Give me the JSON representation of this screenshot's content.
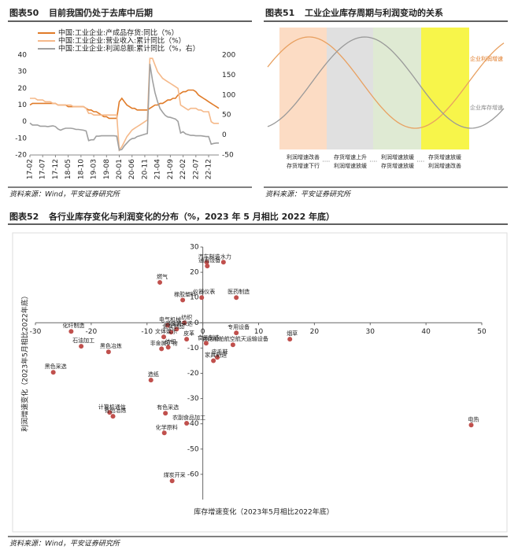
{
  "figures": [
    {
      "number": "图表50",
      "title": "目前我国仍处于去库中后期"
    },
    {
      "number": "图表51",
      "title": "工业企业库存周期与利润变动的关系"
    },
    {
      "number": "图表52",
      "title": "各行业库存变化与利润变化的分布（%，2023 年 5 月相比 2022 年底）"
    }
  ],
  "sources": [
    "资料来源：Wind，平安证券研究所",
    "资料来源：平安证券研究所",
    "资料来源：Wind，平安证券研究所"
  ],
  "diagram": {
    "curves": [
      "企业利润增速",
      "企业库存增速"
    ],
    "phases": [
      [
        "利润增速改善",
        "存货增速下行"
      ],
      [
        "存货增速上升",
        "利润增速放缓"
      ],
      [
        "利润增速放缓",
        "存货增速放缓"
      ],
      [
        "存货增速放缓",
        "利润增速改善"
      ]
    ]
  },
  "chart_data": [
    {
      "type": "line",
      "categories": [
        "17-02",
        null,
        null,
        null,
        null,
        "17-07",
        null,
        null,
        null,
        null,
        "17-12",
        null,
        null,
        null,
        null,
        "18-05",
        null,
        null,
        null,
        null,
        "18-10",
        null,
        null,
        null,
        null,
        "19-03",
        null,
        null,
        null,
        null,
        "19-08",
        null,
        null,
        null,
        null,
        "20-01",
        null,
        null,
        null,
        null,
        "20-06",
        null,
        null,
        null,
        null,
        "20-11",
        null,
        null,
        null,
        null,
        "21-04",
        null,
        null,
        null,
        null,
        "21-09",
        null,
        null,
        null,
        null,
        "22-02",
        null,
        null,
        null,
        null,
        "22-07",
        null,
        null,
        null,
        null,
        "22-12",
        null,
        null,
        null,
        null
      ],
      "ylim": [
        -20,
        40
      ],
      "yticks": [
        -20,
        -10,
        0,
        10,
        20,
        30,
        40
      ],
      "y2lim": [
        -50,
        200
      ],
      "y2ticks": [
        -50,
        0,
        50,
        100,
        150,
        200
      ],
      "series": [
        {
          "name": "中国:工业企业:产成品存货:同比（%）",
          "color": "#e07b28",
          "values": [
            10,
            11,
            11,
            11,
            11,
            11,
            11,
            11,
            11,
            11,
            11,
            10,
            10,
            10,
            10,
            9,
            9,
            9,
            9,
            9,
            9,
            9,
            8,
            7,
            7,
            6,
            6,
            5,
            4,
            3,
            3,
            2,
            2,
            2,
            2,
            12,
            14,
            12,
            10,
            9,
            8,
            8,
            7,
            7,
            7,
            7,
            7,
            8,
            9,
            10,
            10,
            11,
            11,
            12,
            13,
            13,
            14,
            14,
            16,
            17,
            18,
            18,
            19,
            19,
            19,
            18,
            16,
            15,
            14,
            13,
            12,
            11,
            10,
            9,
            8
          ]
        },
        {
          "name": "中国:工业企业:营业收入:累计同比（%）",
          "color": "#f5b98a",
          "values": [
            14,
            14,
            14,
            13,
            13,
            13,
            12,
            12,
            12,
            11,
            11,
            10,
            10,
            10,
            10,
            10,
            10,
            9,
            9,
            9,
            9,
            9,
            8,
            5,
            5,
            4,
            4,
            4,
            4,
            4,
            4,
            4,
            4,
            4,
            4,
            -17,
            -15,
            -12,
            -9,
            -7,
            -5,
            -4,
            -3,
            -2,
            -1,
            0,
            1,
            38,
            38,
            34,
            30,
            28,
            26,
            25,
            24,
            23,
            22,
            21,
            20,
            10,
            9,
            8,
            7,
            8,
            8,
            8,
            7,
            7,
            6,
            6,
            6,
            0,
            -1,
            -1,
            -1
          ]
        },
        {
          "name": "中国:工业企业:利润总额:累计同比（%，右）",
          "color": "#a0a0a0",
          "axis": "y2",
          "values": [
            30,
            25,
            25,
            25,
            22,
            22,
            22,
            21,
            22,
            23,
            21,
            15,
            12,
            15,
            17,
            17,
            17,
            16,
            14,
            14,
            13,
            12,
            10,
            -14,
            -12,
            -12,
            -3,
            -3,
            -2,
            -2,
            -2,
            -2,
            -2,
            -2,
            -3,
            -38,
            -36,
            -27,
            -20,
            -13,
            -9,
            -8,
            -4,
            -2,
            0,
            2,
            4,
            178,
            137,
            106,
            83,
            66,
            57,
            49,
            45,
            44,
            42,
            40,
            34,
            5,
            8,
            3,
            1,
            -1,
            -1,
            -2,
            -2,
            -2,
            -3,
            -4,
            -4,
            -23,
            -21,
            -20,
            -20
          ]
        }
      ]
    },
    {
      "type": "scatter",
      "color": "#c0504d",
      "xlabel": "库存增速变化（2023年5月相比2022年底）",
      "ylabel": "利润增速变化（2023年5月相比2022年底）",
      "xlim": [
        -30,
        50
      ],
      "xticks": [
        -30,
        -20,
        -10,
        0,
        10,
        20,
        30,
        40,
        50
      ],
      "ylim": [
        -70,
        30
      ],
      "yticks": [
        -60,
        -50,
        -40,
        -30,
        -20,
        -10,
        0,
        10,
        20,
        30
      ],
      "point_labels": [
        "汽车制造",
        "水力",
        "通用设备",
        "燃气",
        "橡胶塑料",
        "仪器仪表",
        "医药制造",
        "电气机械",
        "纺织",
        "非金属采选",
        "金属制品",
        "文体娱乐",
        "专用设备",
        "烟草",
        "非金属矿物",
        "纺织",
        "皮革",
        "铁路船舶航空航天运输设备",
        "食品制造",
        "皮毛鞋",
        "家具制造",
        "化纤制造",
        "石油加工",
        "黑色冶炼",
        "黑色采选",
        "造纸",
        "有色采选",
        "计算机通信",
        "有色冶炼",
        "农副食品加工",
        "化学原料",
        "煤炭开采",
        "电热"
      ],
      "x": [
        0.7,
        3.7,
        0.8,
        -7.7,
        -3.6,
        -0.2,
        6,
        -6.3,
        -3.3,
        -4.7,
        -5.7,
        -7,
        6,
        15.6,
        -7.4,
        -6.2,
        -2.9,
        5.4,
        0.6,
        2.6,
        1.9,
        -23.6,
        -21.8,
        -16.9,
        -26.8,
        -9.3,
        -6.7,
        -16.7,
        -16.1,
        -2.9,
        -6.9,
        -5.5,
        48.1
      ],
      "values": [
        24,
        24,
        22.5,
        16,
        9,
        10,
        10,
        -1,
        0,
        -2.5,
        -3.7,
        -5.6,
        -4,
        -6.5,
        -10.3,
        -9.7,
        -6.5,
        -8.7,
        -8.1,
        -13.7,
        -15,
        -3.4,
        -9.3,
        -11.5,
        -19.6,
        -22.7,
        -35.8,
        -35.5,
        -37,
        -39.8,
        -43.6,
        -62.6,
        -40.5
      ]
    }
  ]
}
